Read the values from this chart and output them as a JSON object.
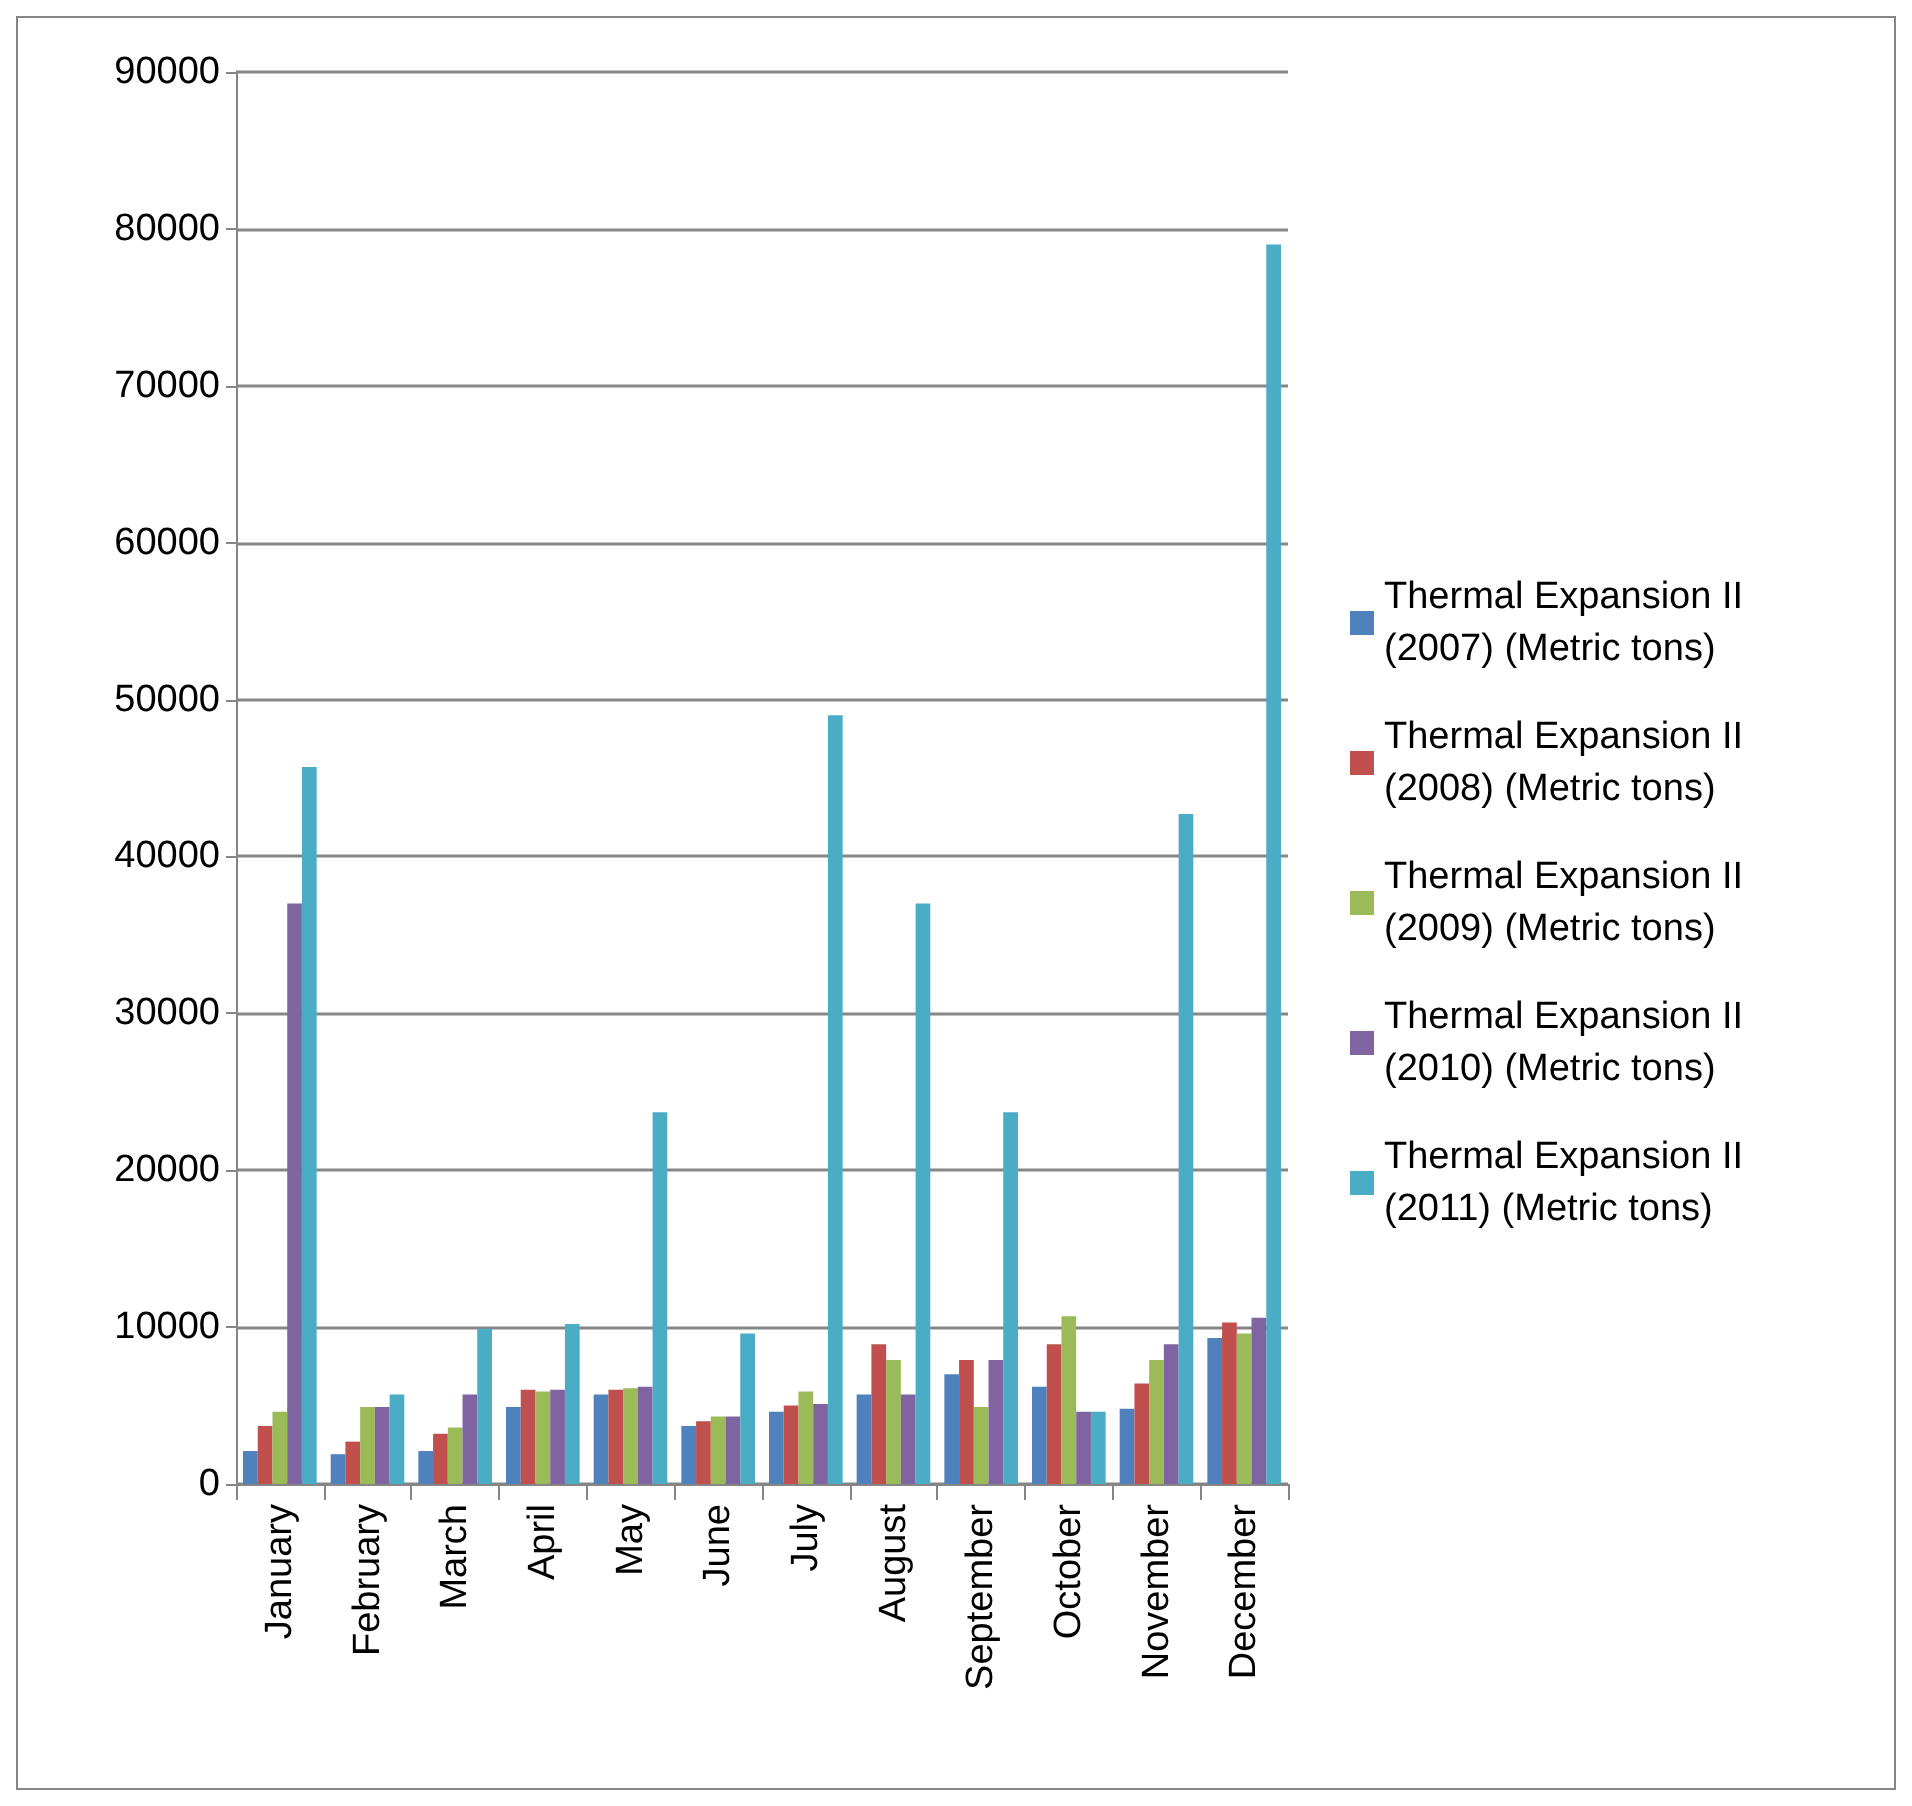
{
  "chart_data": {
    "type": "bar",
    "categories": [
      "January",
      "February",
      "March",
      "April",
      "May",
      "June",
      "July",
      "August",
      "September",
      "October",
      "November",
      "December"
    ],
    "series": [
      {
        "name": "Thermal Expansion II (2007) (Metric tons)",
        "color": "#4f81bd",
        "values": [
          2100,
          1900,
          2100,
          4900,
          5700,
          3700,
          4600,
          5700,
          7000,
          6200,
          4800,
          9300
        ]
      },
      {
        "name": "Thermal Expansion II (2008) (Metric tons)",
        "color": "#c0504d",
        "values": [
          3700,
          2700,
          3200,
          6000,
          6000,
          4000,
          5000,
          8900,
          7900,
          8900,
          6400,
          10300
        ]
      },
      {
        "name": "Thermal Expansion II (2009) (Metric tons)",
        "color": "#9bbb59",
        "values": [
          4600,
          4900,
          3600,
          5900,
          6100,
          4300,
          5900,
          7900,
          4900,
          10700,
          7900,
          9600
        ]
      },
      {
        "name": "Thermal Expansion II (2010) (Metric tons)",
        "color": "#8064a2",
        "values": [
          37000,
          4900,
          5700,
          6000,
          6200,
          4300,
          5100,
          5700,
          7900,
          4600,
          8900,
          10600
        ]
      },
      {
        "name": "Thermal Expansion II (2011) (Metric tons)",
        "color": "#4bacc6",
        "values": [
          45700,
          5700,
          9900,
          10200,
          23700,
          9600,
          49000,
          37000,
          23700,
          4600,
          42700,
          79000
        ]
      }
    ],
    "ylim": [
      0,
      90000
    ],
    "yticks": [
      0,
      10000,
      20000,
      30000,
      40000,
      50000,
      60000,
      70000,
      80000,
      90000
    ],
    "grid": "y",
    "legend": "right"
  }
}
